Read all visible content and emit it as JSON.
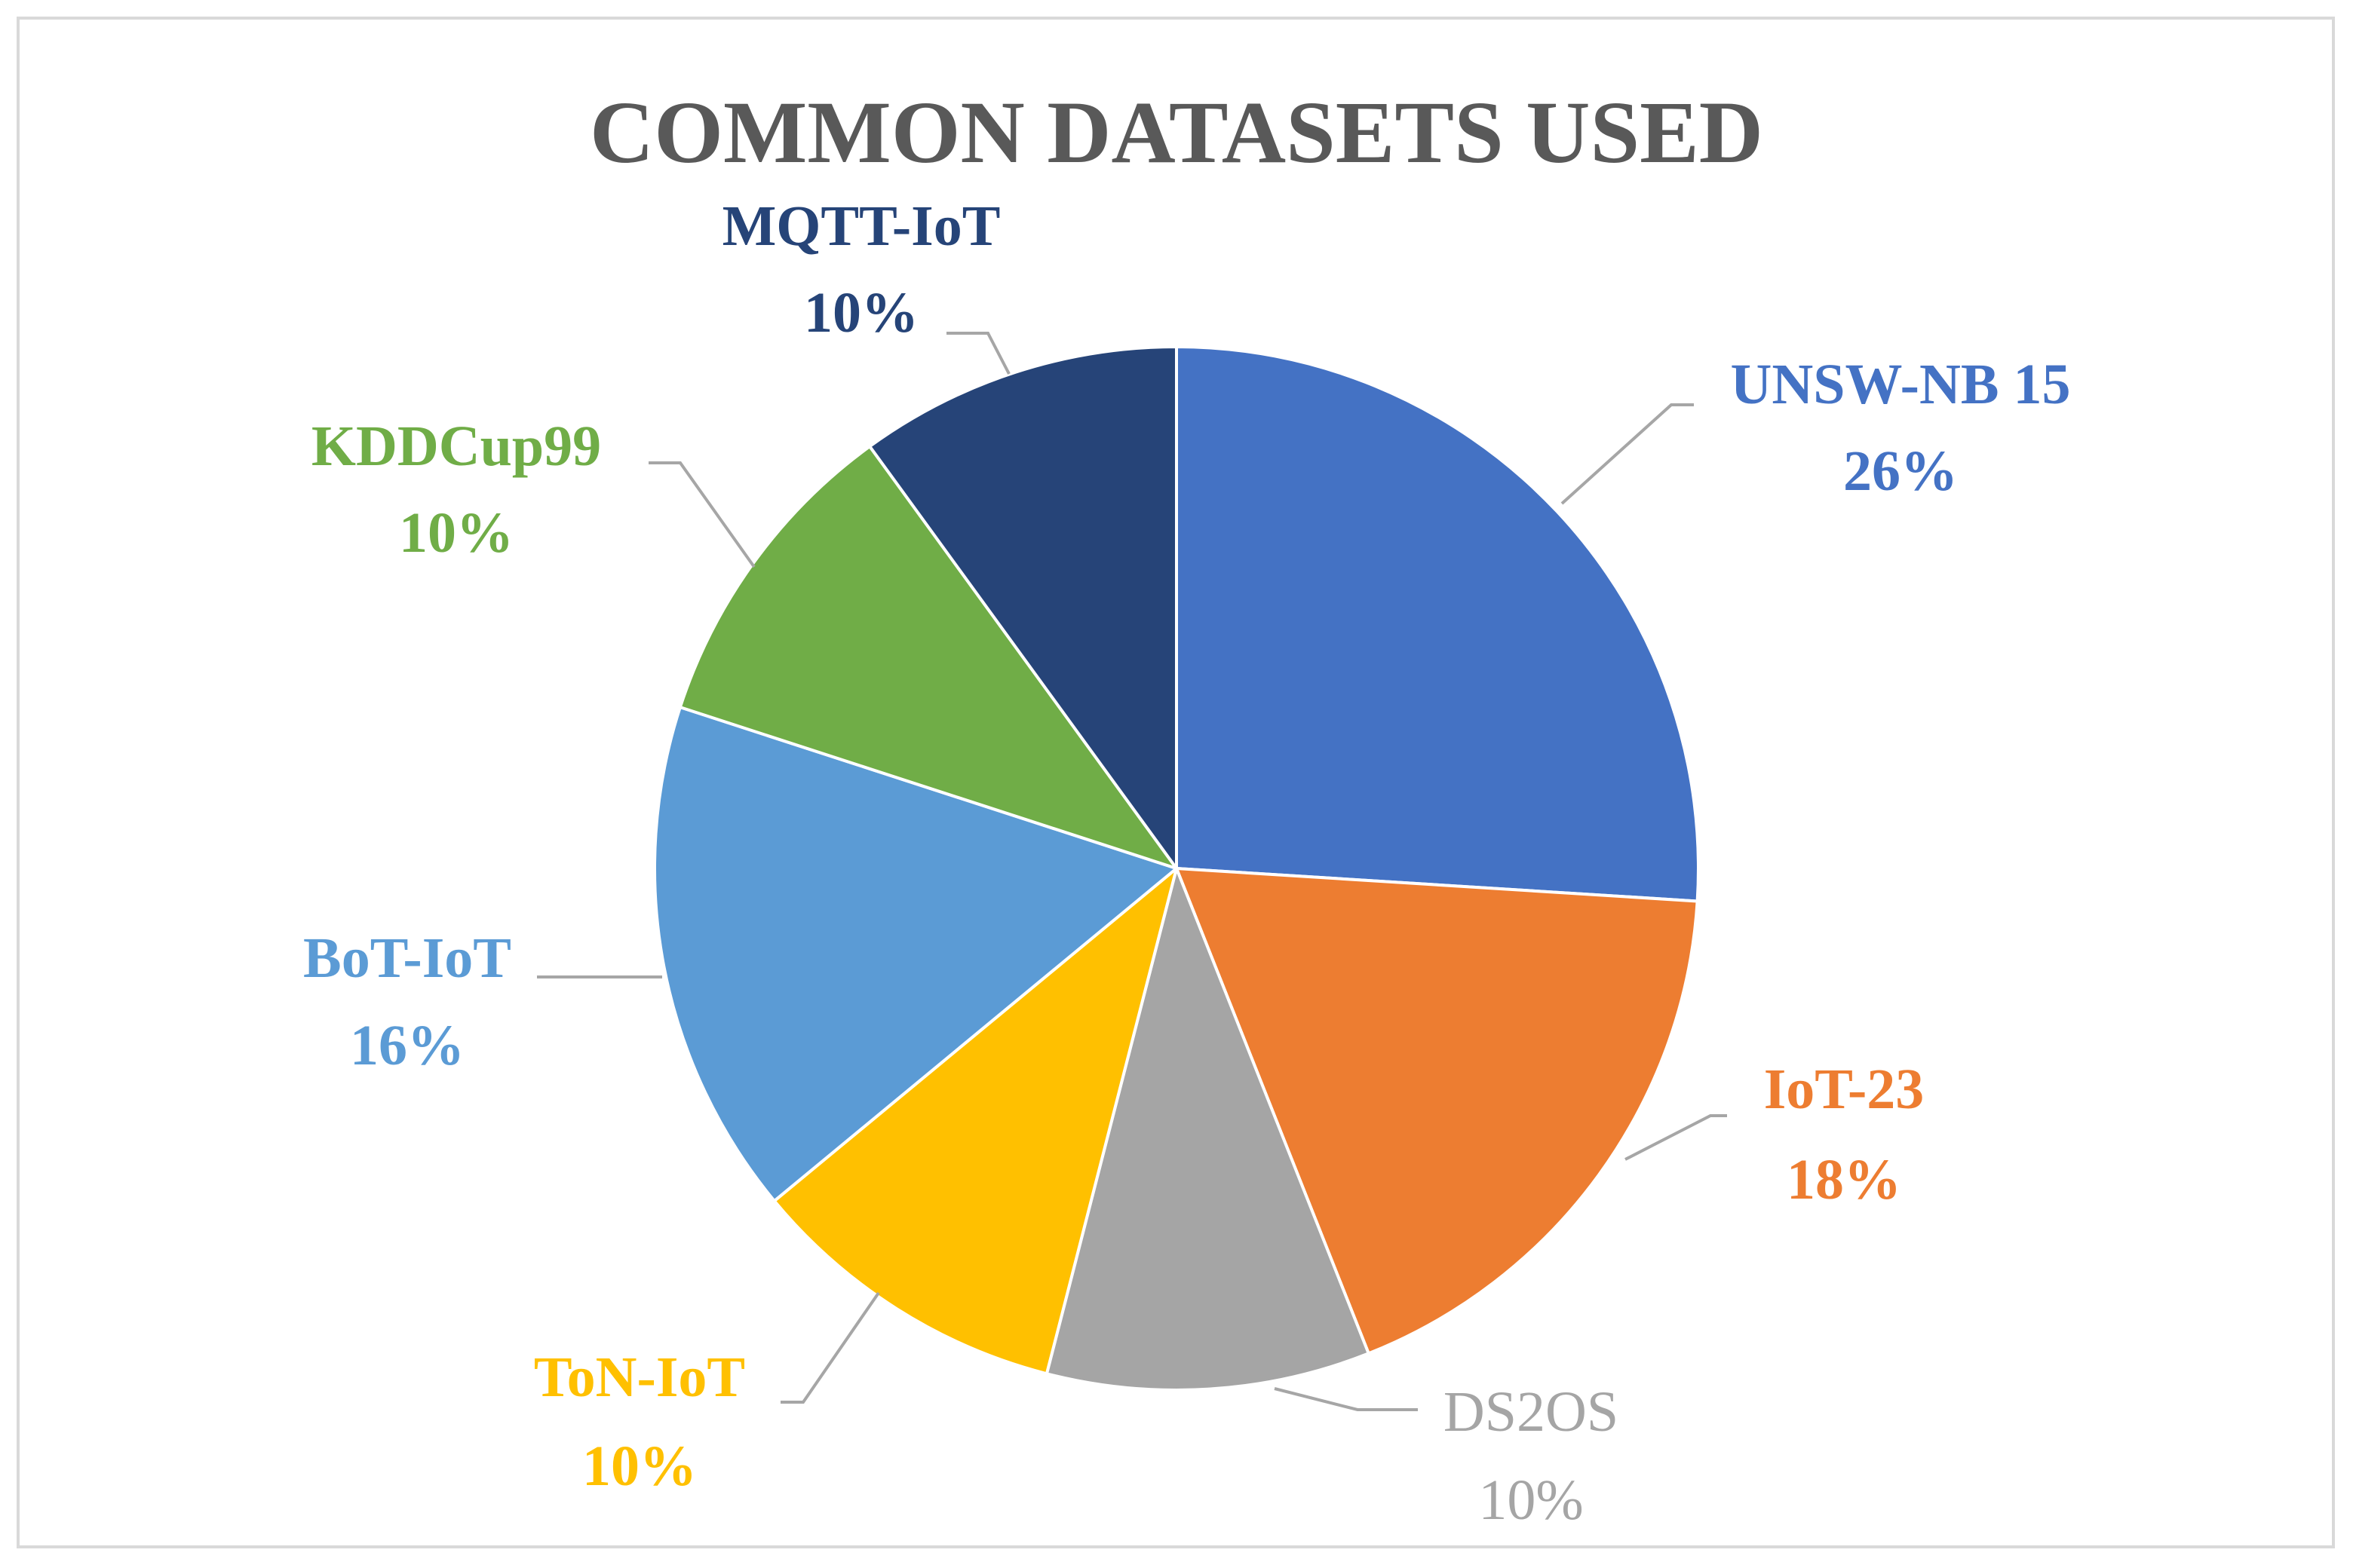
{
  "chart_data": {
    "type": "pie",
    "title": "COMMON DATASETS USED",
    "slices": [
      {
        "name": "UNSW-NB 15",
        "value": 26,
        "label": "26%",
        "color": "#4472C4"
      },
      {
        "name": "IoT-23",
        "value": 18,
        "label": "18%",
        "color": "#ED7D31"
      },
      {
        "name": "DS2OS",
        "value": 10,
        "label": "10%",
        "color": "#A5A5A5"
      },
      {
        "name": "ToN-IoT",
        "value": 10,
        "label": "10%",
        "color": "#FFC000"
      },
      {
        "name": "BoT-IoT",
        "value": 16,
        "label": "16%",
        "color": "#5B9BD5"
      },
      {
        "name": "KDDCup99",
        "value": 10,
        "label": "10%",
        "color": "#70AD47"
      },
      {
        "name": "MQTT-IoT",
        "value": 10,
        "label": "10%",
        "color": "#264478"
      }
    ],
    "start_angle": "12 o'clock",
    "direction": "clockwise",
    "leader_line_color": "#A6A6A6",
    "legend": "none"
  }
}
